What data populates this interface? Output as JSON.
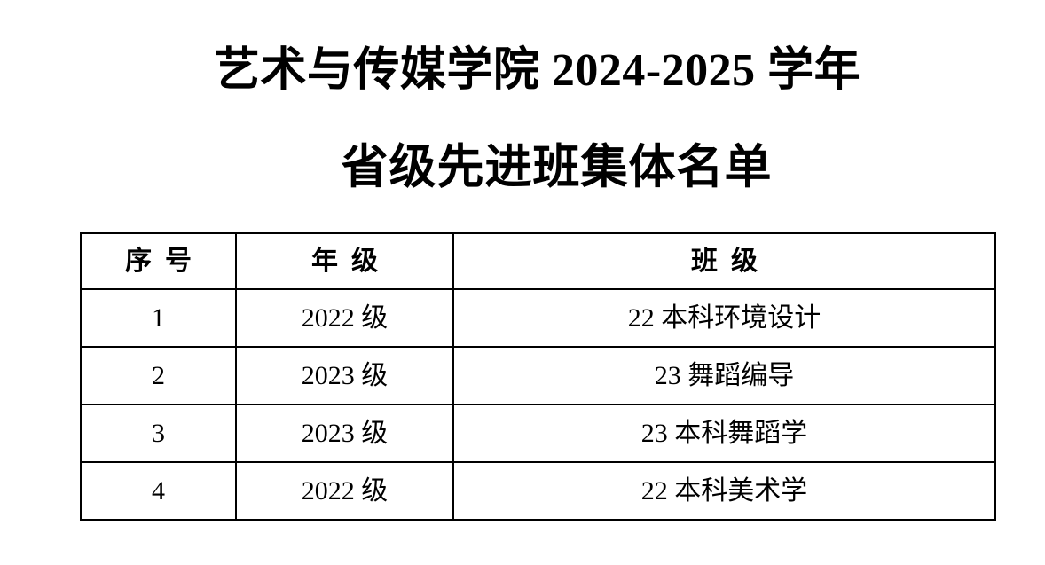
{
  "page": {
    "background_color": "#ffffff",
    "text_color": "#000000",
    "border_color": "#000000",
    "title_line1": "艺术与传媒学院 2024-2025 学年",
    "title_line2": "省级先进班集体名单"
  },
  "table": {
    "headers": {
      "serial": "序 号",
      "grade": "年 级",
      "class": "班 级"
    },
    "rows": [
      {
        "no": "1",
        "grade": "2022 级",
        "class": "22 本科环境设计"
      },
      {
        "no": "2",
        "grade": "2023 级",
        "class": "23 舞蹈编导"
      },
      {
        "no": "3",
        "grade": "2023 级",
        "class": "23 本科舞蹈学"
      },
      {
        "no": "4",
        "grade": "2022 级",
        "class": "22 本科美术学"
      }
    ]
  }
}
